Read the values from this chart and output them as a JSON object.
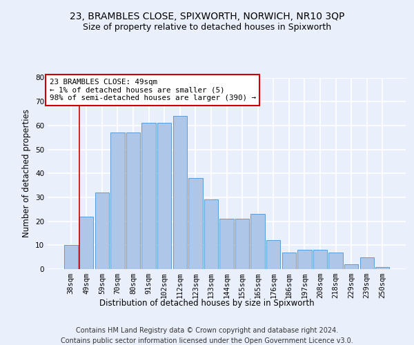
{
  "title1": "23, BRAMBLES CLOSE, SPIXWORTH, NORWICH, NR10 3QP",
  "title2": "Size of property relative to detached houses in Spixworth",
  "xlabel": "Distribution of detached houses by size in Spixworth",
  "ylabel": "Number of detached properties",
  "categories": [
    "38sqm",
    "49sqm",
    "59sqm",
    "70sqm",
    "80sqm",
    "91sqm",
    "102sqm",
    "112sqm",
    "123sqm",
    "133sqm",
    "144sqm",
    "155sqm",
    "165sqm",
    "176sqm",
    "186sqm",
    "197sqm",
    "208sqm",
    "218sqm",
    "229sqm",
    "239sqm",
    "250sqm"
  ],
  "values": [
    10,
    22,
    32,
    57,
    57,
    61,
    61,
    64,
    38,
    29,
    21,
    21,
    23,
    12,
    7,
    8,
    8,
    7,
    2,
    5,
    1
  ],
  "bar_color": "#aec6e8",
  "bar_edge_color": "#5b9bd5",
  "annotation_line_bin": 1,
  "annotation_text": "23 BRAMBLES CLOSE: 49sqm\n← 1% of detached houses are smaller (5)\n98% of semi-detached houses are larger (390) →",
  "footer1": "Contains HM Land Registry data © Crown copyright and database right 2024.",
  "footer2": "Contains public sector information licensed under the Open Government Licence v3.0.",
  "ylim": [
    0,
    80
  ],
  "yticks": [
    0,
    10,
    20,
    30,
    40,
    50,
    60,
    70,
    80
  ],
  "background_color": "#eaf0fb",
  "plot_bg_color": "#eaf0fb",
  "grid_color": "#ffffff",
  "annotation_box_color": "#ffffff",
  "annotation_box_edge": "#cc0000",
  "title_fontsize": 10,
  "subtitle_fontsize": 9,
  "label_fontsize": 8.5,
  "tick_fontsize": 7.5,
  "footer_fontsize": 7
}
